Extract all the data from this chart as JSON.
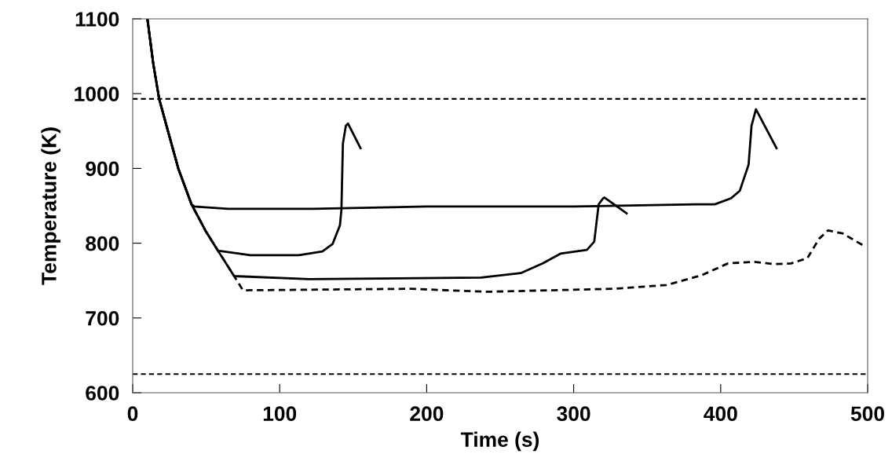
{
  "chart_data": {
    "type": "line",
    "xlabel": "Time (s)",
    "ylabel": "Temperature (K)",
    "xlim": [
      0,
      500
    ],
    "xticks": [
      0,
      100,
      200,
      300,
      400,
      500
    ],
    "ylim": [
      600,
      1100
    ],
    "yticks": [
      600,
      700,
      800,
      900,
      1000,
      1100
    ],
    "grid": false,
    "legend": false,
    "marker": "none",
    "ref_lines": [
      {
        "axis": "y",
        "value": 993,
        "color": "#000000",
        "line_style": "dashed"
      },
      {
        "axis": "y",
        "value": 625,
        "color": "#000000",
        "line_style": "dashed"
      }
    ],
    "series": [
      {
        "color": "#000000",
        "line_style": "solid",
        "x": [
          10,
          14,
          18,
          24,
          31,
          40,
          42,
          65,
          122,
          200,
          300,
          383,
          396,
          407,
          413,
          419,
          421,
          424,
          438
        ],
        "values": [
          1100,
          1040,
          993,
          950,
          900,
          852,
          849,
          846,
          846,
          849,
          849,
          852,
          852,
          860,
          870,
          905,
          957,
          979,
          927
        ]
      },
      {
        "color": "#000000",
        "line_style": "solid",
        "x": [
          10,
          14,
          18,
          24,
          31,
          40,
          50,
          58,
          80,
          113,
          129,
          136,
          141,
          142,
          143,
          145,
          146.5,
          155
        ],
        "values": [
          1100,
          1040,
          993,
          950,
          900,
          852,
          815,
          790,
          784,
          784,
          789,
          799,
          824,
          845,
          933,
          957,
          960,
          927
        ]
      },
      {
        "color": "#000000",
        "line_style": "solid",
        "x": [
          10,
          14,
          18,
          24,
          31,
          40,
          50,
          58,
          69,
          120,
          237,
          264,
          279,
          291,
          309,
          314,
          317,
          320,
          321,
          336
        ],
        "values": [
          1100,
          1040,
          993,
          950,
          900,
          852,
          815,
          790,
          756,
          752,
          754,
          760,
          773,
          786,
          791,
          802,
          852,
          860,
          861,
          840
        ]
      },
      {
        "color": "#000000",
        "line_style": "dashed",
        "x": [
          10,
          14,
          18,
          24,
          31,
          40,
          50,
          58,
          69,
          75,
          189,
          241,
          327,
          363,
          387,
          405,
          423,
          437,
          448,
          459,
          467,
          473,
          483,
          497
        ],
        "values": [
          1100,
          1040,
          993,
          950,
          900,
          852,
          815,
          790,
          756,
          737,
          739,
          735,
          739,
          744,
          757,
          773,
          775,
          772,
          773,
          780,
          806,
          817,
          813,
          797
        ]
      }
    ]
  }
}
